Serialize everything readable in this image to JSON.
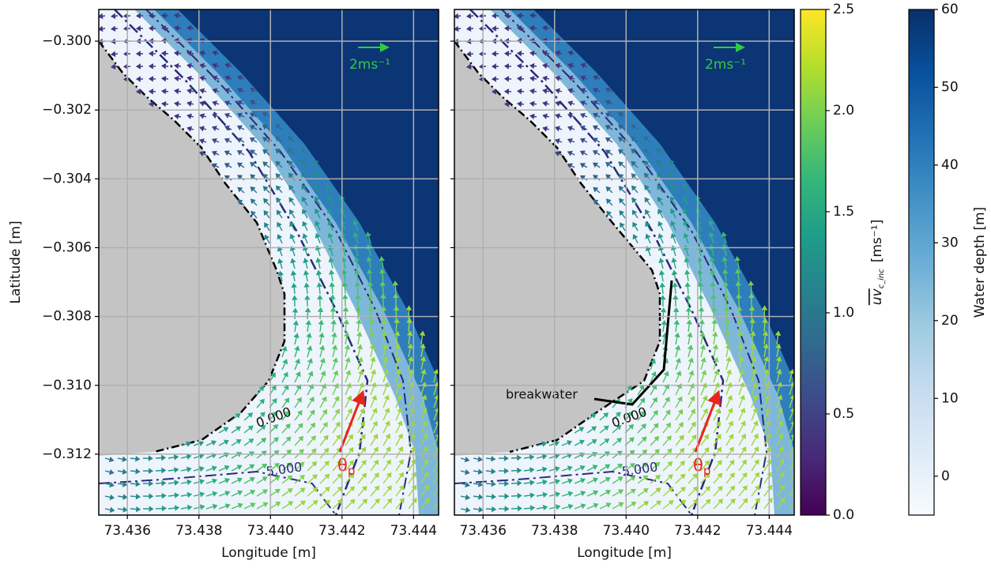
{
  "chart_data": [
    {
      "type": "map",
      "xlabel": "Longitude [m]",
      "ylabel": "Latitude [m]",
      "xlim": [
        73.4352,
        73.4447
      ],
      "ylim": [
        -0.31377,
        -0.29908
      ],
      "xticks": [
        73.436,
        73.438,
        {
          "value": 73.44,
          "label": "73.440"
        },
        73.442,
        73.444
      ],
      "yticks": [
        {
          "value": -0.3,
          "label": "−0.300"
        },
        {
          "value": -0.302,
          "label": "−0.302"
        },
        {
          "value": -0.304,
          "label": "−0.304"
        },
        {
          "value": -0.306,
          "label": "−0.306"
        },
        {
          "value": -0.308,
          "label": "−0.308"
        },
        {
          "value": -0.31,
          "label": "−0.310"
        },
        {
          "value": -0.312,
          "label": "−0.312"
        }
      ],
      "ytick_labels": true,
      "grid": true,
      "annotations": {
        "scale": "2ms⁻¹",
        "contour_0": "0.000",
        "contour_5": "5.000",
        "angle": "θ",
        "angle_sub": "p"
      }
    },
    {
      "type": "map",
      "xlabel": "Longitude [m]",
      "xlim": [
        73.4352,
        73.4447
      ],
      "ylim": [
        -0.31377,
        -0.29908
      ],
      "xticks": [
        73.436,
        73.438,
        {
          "value": 73.44,
          "label": "73.440"
        },
        73.442,
        73.444
      ],
      "yticks": [
        -0.3,
        -0.302,
        -0.304,
        -0.306,
        -0.308,
        -0.31,
        -0.312
      ],
      "ytick_labels": false,
      "grid": true,
      "breakwater": true,
      "annotations": {
        "scale": "2ms⁻¹",
        "contour_0": "0.000",
        "contour_5": "5.000",
        "angle": "θ",
        "angle_sub": "p",
        "breakwater": "breakwater"
      }
    },
    {
      "type": "colorbar",
      "label": "uv",
      "label_sub": "c_inc",
      "label_unit": "[ms⁻¹]",
      "colormap": "viridis",
      "ylim": [
        0,
        2.5
      ],
      "yticks": [
        {
          "value": 0,
          "label": "0.0"
        },
        0.5,
        {
          "value": 1,
          "label": "1.0"
        },
        1.5,
        {
          "value": 2,
          "label": "2.0"
        },
        2.5
      ]
    },
    {
      "type": "colorbar",
      "label": "Water depth [m]",
      "colormap": "Blues",
      "ylim": [
        -5,
        60
      ],
      "yticks": [
        0,
        10,
        20,
        30,
        40,
        50,
        60
      ]
    }
  ]
}
